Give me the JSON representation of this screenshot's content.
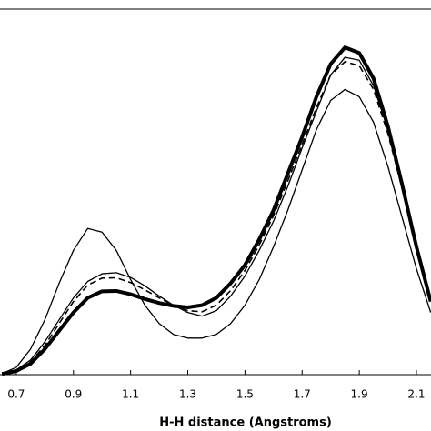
{
  "chart_data": {
    "type": "line",
    "x_label": "H-H distance (Angstroms)",
    "x": [
      0.65,
      0.7,
      0.75,
      0.8,
      0.85,
      0.9,
      0.95,
      1.0,
      1.05,
      1.1,
      1.15,
      1.2,
      1.25,
      1.3,
      1.35,
      1.4,
      1.45,
      1.5,
      1.55,
      1.6,
      1.65,
      1.7,
      1.75,
      1.8,
      1.85,
      1.9,
      1.95,
      2.0,
      2.05,
      2.1,
      2.15
    ],
    "series": [
      {
        "color": "#000000",
        "width": 1.3,
        "dash": "none",
        "values": [
          0.003,
          0.02,
          0.07,
          0.15,
          0.25,
          0.34,
          0.4,
          0.39,
          0.34,
          0.26,
          0.19,
          0.14,
          0.11,
          0.1,
          0.1,
          0.11,
          0.14,
          0.19,
          0.26,
          0.35,
          0.45,
          0.56,
          0.67,
          0.75,
          0.78,
          0.76,
          0.69,
          0.57,
          0.43,
          0.29,
          0.17
        ]
      },
      {
        "color": "#000000",
        "width": 1.3,
        "dash": "none",
        "values": [
          0.002,
          0.013,
          0.04,
          0.09,
          0.15,
          0.21,
          0.255,
          0.276,
          0.279,
          0.266,
          0.243,
          0.215,
          0.19,
          0.17,
          0.16,
          0.175,
          0.215,
          0.27,
          0.34,
          0.42,
          0.515,
          0.62,
          0.72,
          0.82,
          0.868,
          0.86,
          0.79,
          0.67,
          0.52,
          0.36,
          0.21
        ]
      },
      {
        "color": "#000000",
        "width": 1.6,
        "dash": "7 4",
        "values": [
          0.002,
          0.012,
          0.035,
          0.08,
          0.14,
          0.2,
          0.245,
          0.264,
          0.265,
          0.252,
          0.232,
          0.21,
          0.19,
          0.175,
          0.172,
          0.19,
          0.23,
          0.285,
          0.355,
          0.435,
          0.53,
          0.63,
          0.73,
          0.82,
          0.856,
          0.845,
          0.78,
          0.66,
          0.51,
          0.35,
          0.2
        ]
      },
      {
        "color": "#000000",
        "width": 4,
        "dash": "none",
        "values": [
          0.002,
          0.01,
          0.03,
          0.07,
          0.12,
          0.17,
          0.21,
          0.228,
          0.229,
          0.22,
          0.207,
          0.196,
          0.188,
          0.184,
          0.19,
          0.21,
          0.25,
          0.3,
          0.37,
          0.45,
          0.55,
          0.65,
          0.76,
          0.85,
          0.895,
          0.88,
          0.81,
          0.68,
          0.52,
          0.35,
          0.2
        ]
      }
    ],
    "xlim": [
      0.643,
      2.151
    ],
    "xticks": [
      0.7,
      0.9,
      1.1,
      1.3,
      1.5,
      1.7,
      1.9,
      2.1
    ],
    "ylim": [
      0,
      1
    ]
  }
}
